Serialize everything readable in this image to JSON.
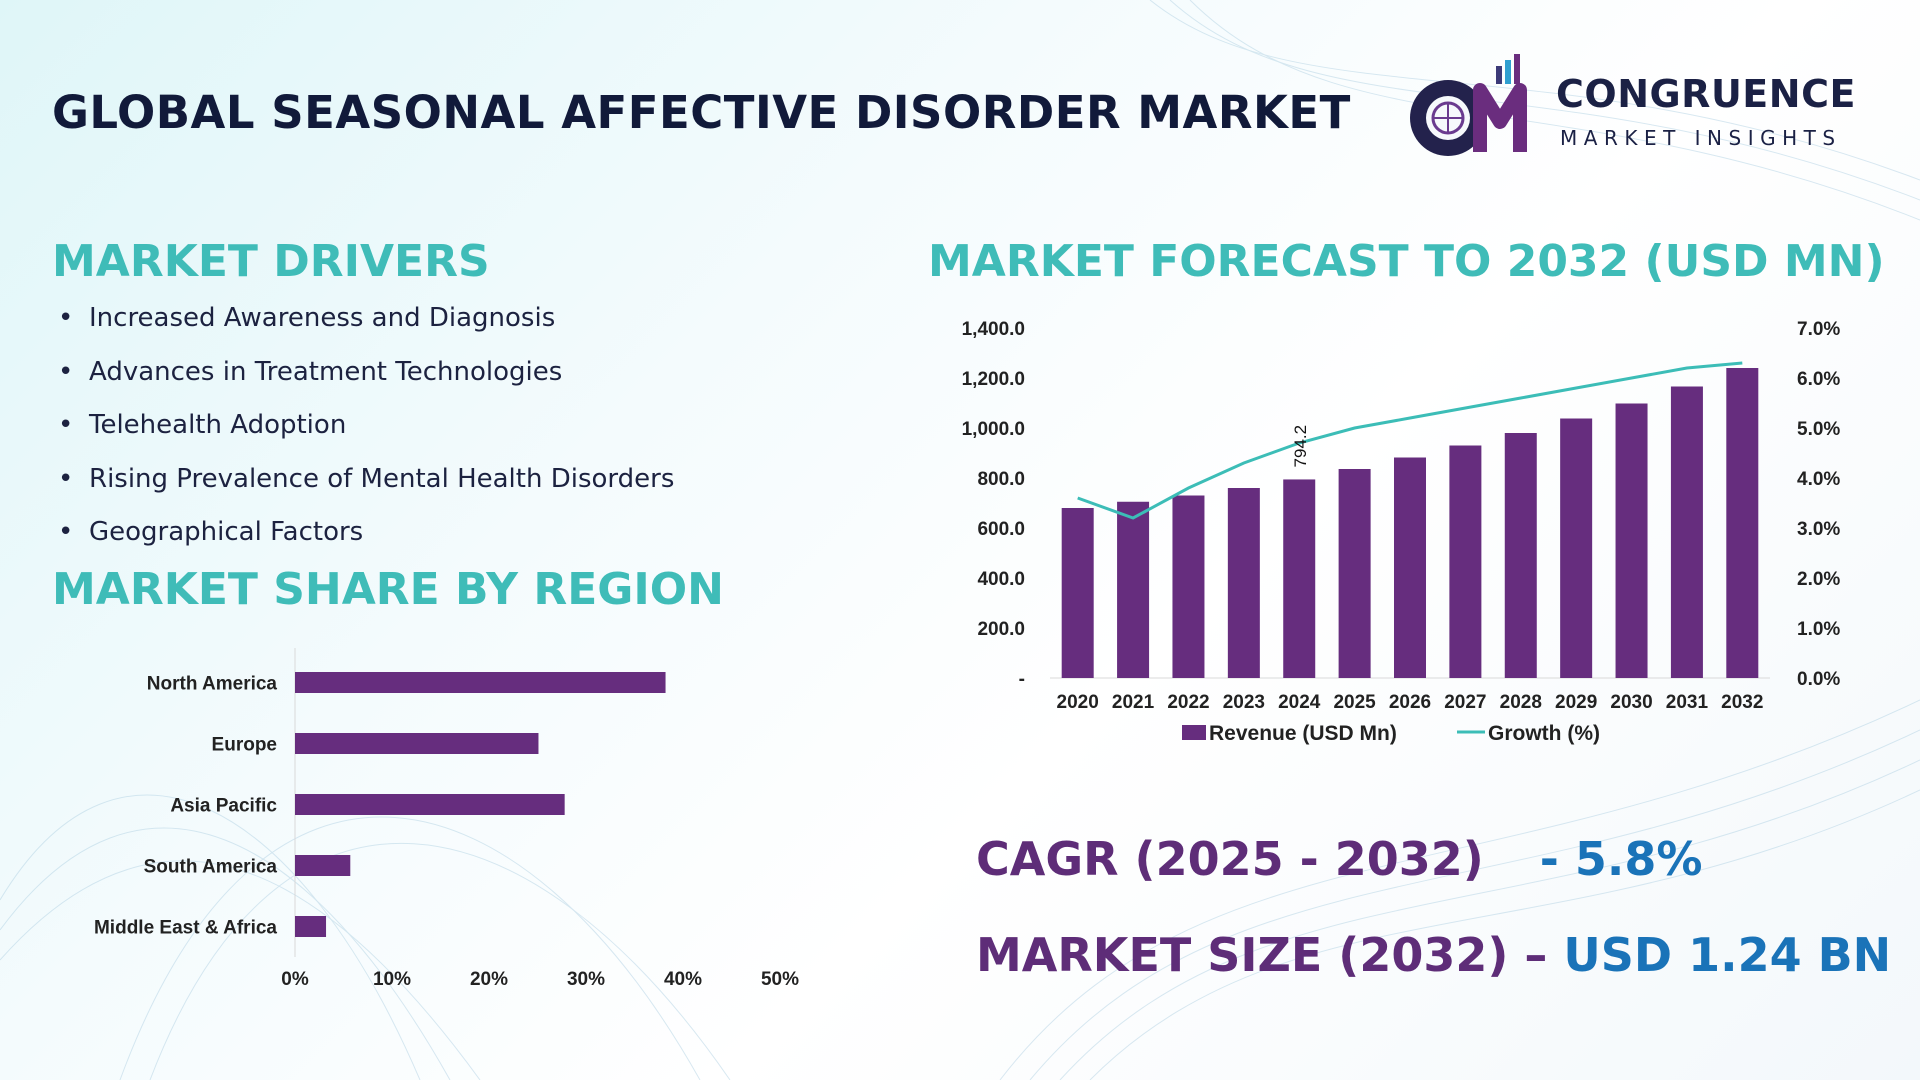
{
  "header": {
    "title": "GLOBAL SEASONAL AFFECTIVE DISORDER MARKET",
    "logo": {
      "mark": "CM",
      "name": "CONGRUENCE",
      "tagline": "MARKET INSIGHTS"
    }
  },
  "drivers": {
    "heading": "MARKET DRIVERS",
    "bullet": "•",
    "items": [
      "Increased Awareness and Diagnosis",
      "Advances in Treatment Technologies",
      "Telehealth Adoption",
      "Rising Prevalence of Mental Health Disorders",
      "Geographical Factors"
    ]
  },
  "region_section": {
    "heading": "MARKET SHARE BY REGION"
  },
  "forecast_section": {
    "heading": "MARKET FORECAST TO 2032 (USD MN)"
  },
  "summary": {
    "cagr_label": "CAGR (2025 - 2032)",
    "cagr_value": "- 5.8%",
    "size_label": "MARKET SIZE (2032) –",
    "size_value": "USD 1.24 BN"
  },
  "colors": {
    "bar": "#662d7e",
    "line": "#3cbdb7",
    "heading": "#3fbcb8",
    "title": "#111a3a",
    "accent_blue": "#1a73b8",
    "accent_purple": "#5e2d78"
  },
  "chart_data": [
    {
      "type": "bar",
      "orientation": "horizontal",
      "categories": [
        "North America",
        "Europe",
        "Asia Pacific",
        "South America",
        "Middle East & Africa"
      ],
      "values": [
        38.2,
        25.1,
        27.8,
        5.7,
        3.2
      ],
      "xlim": [
        0,
        50
      ],
      "xticks": [
        "0%",
        "10%",
        "20%",
        "30%",
        "40%",
        "50%"
      ],
      "grid": false
    },
    {
      "type": "bar",
      "categories": [
        "2020",
        "2021",
        "2022",
        "2023",
        "2024",
        "2025",
        "2026",
        "2027",
        "2028",
        "2029",
        "2030",
        "2031",
        "2032"
      ],
      "series": [
        {
          "name": "Revenue (USD Mn)",
          "type": "bar",
          "axis": "left",
          "values": [
            680,
            705,
            730,
            760,
            794.2,
            836,
            882,
            930,
            980,
            1038,
            1098,
            1166,
            1240
          ]
        },
        {
          "name": "Growth (%)",
          "type": "line",
          "axis": "right",
          "values": [
            3.6,
            3.2,
            3.8,
            4.3,
            4.7,
            5.0,
            5.2,
            5.4,
            5.6,
            5.8,
            6.0,
            6.2,
            6.3
          ]
        }
      ],
      "data_labels": [
        {
          "category": "2024",
          "text": "794.2"
        }
      ],
      "ylim_left": [
        0,
        1400
      ],
      "yticks_left": [
        "-",
        "200.0",
        "400.0",
        "600.0",
        "800.0",
        "1,000.0",
        "1,200.0",
        "1,400.0"
      ],
      "ylim_right": [
        0,
        7
      ],
      "yticks_right": [
        "0.0%",
        "1.0%",
        "2.0%",
        "3.0%",
        "4.0%",
        "5.0%",
        "6.0%",
        "7.0%"
      ],
      "legend": "bottom",
      "grid": false
    }
  ]
}
